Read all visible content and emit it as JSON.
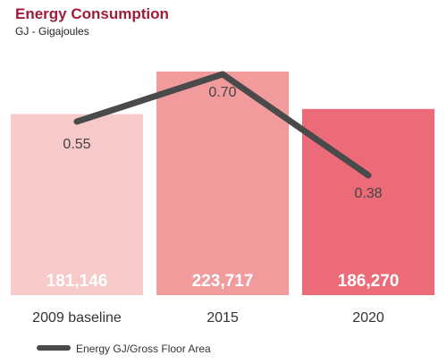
{
  "chart_data": {
    "type": "bar",
    "title": "Energy Consumption",
    "subtitle": "GJ - Gigajoules",
    "categories": [
      "2009 baseline",
      "2015",
      "2020"
    ],
    "series": [
      {
        "values": [
          181146,
          223717,
          186270
        ],
        "value_labels": [
          "181,146",
          "223,717",
          "186,270"
        ],
        "colors": [
          "#f7c9c9",
          "#f19b9d",
          "#ec6b79"
        ]
      },
      {
        "name": "Energy GJ/Gross Floor Area",
        "type": "line",
        "values": [
          0.55,
          0.7,
          0.38
        ],
        "value_labels": [
          "0.55",
          "0.70",
          "0.38"
        ],
        "color": "#4a4a4a"
      }
    ],
    "legend": {
      "position": "bottom-left",
      "label": "Energy GJ/Gross Floor Area"
    },
    "grid": false
  }
}
